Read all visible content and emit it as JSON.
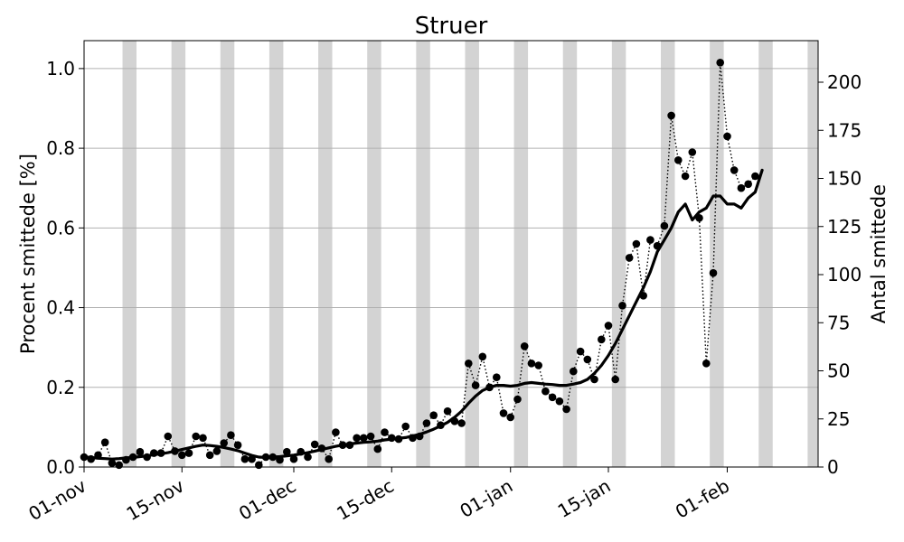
{
  "chart_data": {
    "type": "line",
    "title": "Struer",
    "ylabel": "Procent smittede [%]",
    "y2label": "Antal smittede",
    "x_start": "2020-11-01",
    "xlim": [
      "2020-11-01",
      "2021-02-14"
    ],
    "ylim": [
      0,
      1.07
    ],
    "y2lim": [
      0,
      221.6
    ],
    "x_ticks": [
      {
        "date": "2020-11-01",
        "label": "01-nov"
      },
      {
        "date": "2020-11-15",
        "label": "15-nov"
      },
      {
        "date": "2020-12-01",
        "label": "01-dec"
      },
      {
        "date": "2020-12-15",
        "label": "15-dec"
      },
      {
        "date": "2021-01-01",
        "label": "01-jan"
      },
      {
        "date": "2021-01-15",
        "label": "15-jan"
      },
      {
        "date": "2021-02-01",
        "label": "01-feb"
      }
    ],
    "y_ticks": [
      0.0,
      0.2,
      0.4,
      0.6,
      0.8,
      1.0
    ],
    "y_tick_labels": [
      "0.0",
      "0.2",
      "0.4",
      "0.6",
      "0.8",
      "1.0"
    ],
    "y2_ticks": [
      0,
      25,
      50,
      75,
      100,
      125,
      150,
      175,
      200
    ],
    "grid": "horizontal",
    "weekend_bands": [
      "2020-11-07",
      "2020-11-14",
      "2020-11-21",
      "2020-11-28",
      "2020-12-05",
      "2020-12-12",
      "2020-12-19",
      "2020-12-26",
      "2021-01-02",
      "2021-01-09",
      "2021-01-16",
      "2021-01-23",
      "2021-01-30",
      "2021-02-06",
      "2021-02-13"
    ],
    "series": [
      {
        "style": "dotted-markers",
        "start": "2020-11-01",
        "values": [
          0.025,
          0.02,
          0.03,
          0.062,
          0.01,
          0.005,
          0.018,
          0.025,
          0.038,
          0.025,
          0.035,
          0.035,
          0.077,
          0.04,
          0.03,
          0.035,
          0.077,
          0.073,
          0.03,
          0.04,
          0.06,
          0.08,
          0.055,
          0.02,
          0.02,
          0.005,
          0.025,
          0.025,
          0.018,
          0.038,
          0.02,
          0.038,
          0.025,
          0.057,
          0.047,
          0.02,
          0.087,
          0.055,
          0.055,
          0.073,
          0.073,
          0.077,
          0.045,
          0.087,
          0.073,
          0.07,
          0.102,
          0.073,
          0.077,
          0.11,
          0.13,
          0.105,
          0.14,
          0.115,
          0.11,
          0.26,
          0.205,
          0.277,
          0.2,
          0.225,
          0.135,
          0.125,
          0.17,
          0.303,
          0.26,
          0.255,
          0.19,
          0.175,
          0.165,
          0.145,
          0.24,
          0.29,
          0.27,
          0.22,
          0.32,
          0.355,
          0.22,
          0.405,
          0.525,
          0.56,
          0.43,
          0.57,
          0.555,
          0.605,
          0.882,
          0.77,
          0.73,
          0.79,
          0.625,
          0.26,
          0.487,
          1.015,
          0.83,
          0.745,
          0.7,
          0.71,
          0.73
        ]
      },
      {
        "style": "smoothed-line",
        "start": "2020-11-01",
        "values": [
          0.025,
          0.024,
          0.022,
          0.021,
          0.02,
          0.021,
          0.023,
          0.024,
          0.026,
          0.028,
          0.031,
          0.033,
          0.036,
          0.04,
          0.044,
          0.048,
          0.052,
          0.055,
          0.054,
          0.052,
          0.049,
          0.045,
          0.041,
          0.035,
          0.029,
          0.025,
          0.024,
          0.025,
          0.026,
          0.028,
          0.03,
          0.033,
          0.036,
          0.04,
          0.044,
          0.048,
          0.052,
          0.055,
          0.058,
          0.06,
          0.062,
          0.063,
          0.065,
          0.068,
          0.07,
          0.072,
          0.074,
          0.078,
          0.082,
          0.088,
          0.095,
          0.103,
          0.112,
          0.125,
          0.14,
          0.16,
          0.178,
          0.192,
          0.2,
          0.205,
          0.205,
          0.203,
          0.205,
          0.21,
          0.212,
          0.21,
          0.208,
          0.207,
          0.205,
          0.205,
          0.208,
          0.212,
          0.22,
          0.235,
          0.255,
          0.28,
          0.31,
          0.345,
          0.38,
          0.415,
          0.45,
          0.49,
          0.54,
          0.57,
          0.6,
          0.64,
          0.66,
          0.62,
          0.64,
          0.65,
          0.68,
          0.68,
          0.66,
          0.66,
          0.65,
          0.675,
          0.69,
          0.745
        ]
      }
    ]
  }
}
